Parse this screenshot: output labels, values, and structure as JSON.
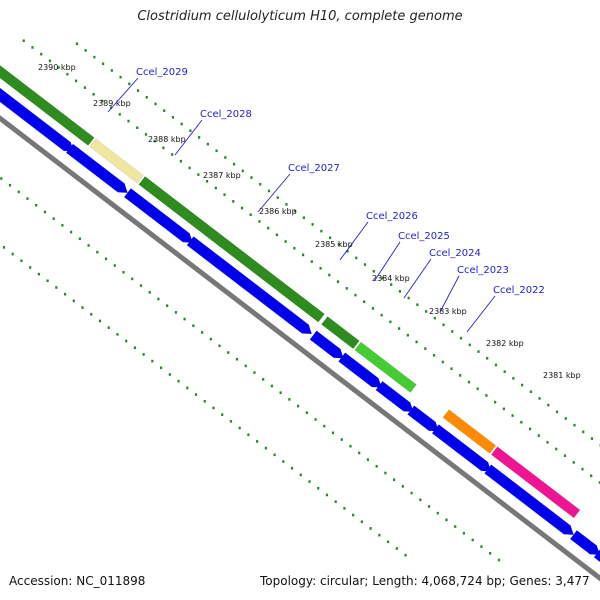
{
  "title": "Clostridium cellulolyticum H10, complete genome",
  "footer": {
    "accession": "Accession: NC_011898",
    "topology": "Topology: circular; Length: 4,068,724 bp; Genes: 3,477"
  },
  "ticks": [
    "2390 kbp",
    "2389 kbp",
    "2388 kbp",
    "2387 kbp",
    "2386 kbp",
    "2385 kbp",
    "2384 kbp",
    "2383 kbp",
    "2382 kbp",
    "2381 kbp"
  ],
  "gene_labels": [
    "Ccel_2029",
    "Ccel_2028",
    "Ccel_2027",
    "Ccel_2026",
    "Ccel_2025",
    "Ccel_2024",
    "Ccel_2023",
    "Ccel_2022"
  ],
  "colors": {
    "cds": "#0000ee",
    "gene_green": "#2e8b1e",
    "gene_lightgreen": "#44cc33",
    "gene_yellow": "#f0e6a0",
    "gene_orange": "#ff8c00",
    "gene_pink": "#ee1493",
    "backbone": "#777777",
    "dots": "#228b22"
  }
}
